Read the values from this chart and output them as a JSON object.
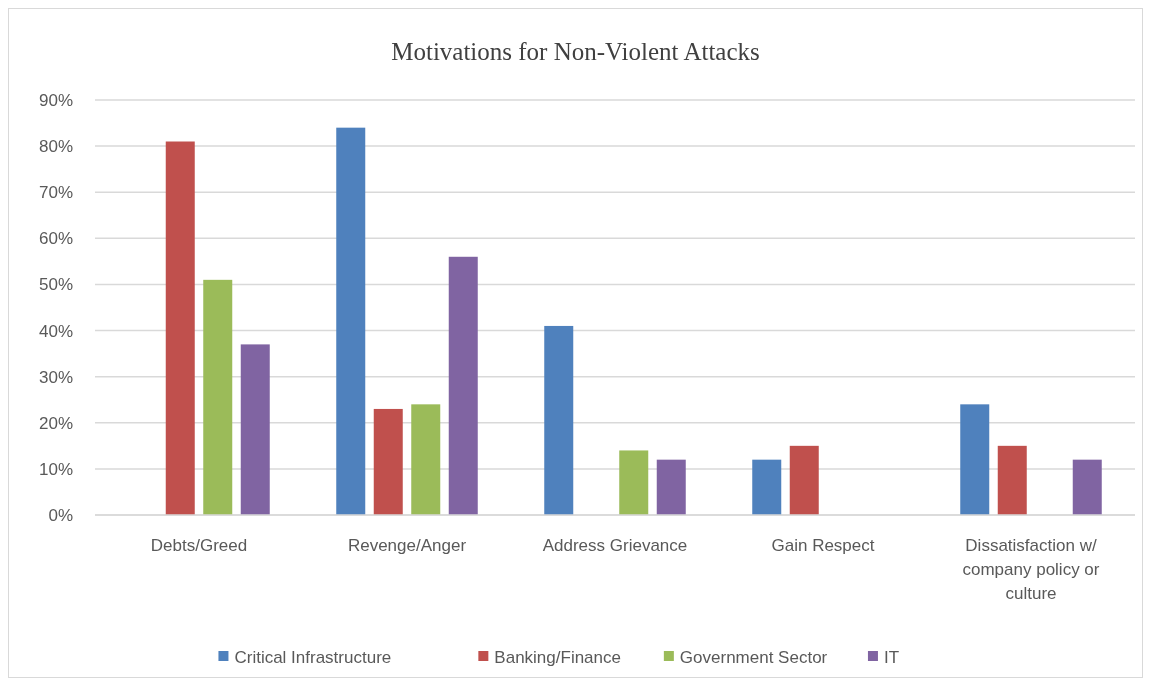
{
  "chart_data": {
    "type": "bar",
    "title": "Motivations for Non-Violent Attacks",
    "categories": [
      "Debts/Greed",
      "Revenge/Anger",
      "Address Grievance",
      "Gain Respect",
      "Dissatisfaction w/ company policy or culture"
    ],
    "series": [
      {
        "name": "Critical Infrastructure",
        "color": "#4f81bd",
        "values": [
          0,
          84,
          41,
          12,
          24
        ]
      },
      {
        "name": "Banking/Finance",
        "color": "#c0504d",
        "values": [
          81,
          23,
          0,
          15,
          15
        ]
      },
      {
        "name": "Government Sector",
        "color": "#9bbb59",
        "values": [
          51,
          24,
          14,
          0,
          0
        ]
      },
      {
        "name": "IT",
        "color": "#8064a2",
        "values": [
          37,
          56,
          12,
          0,
          12
        ]
      }
    ],
    "ylim": [
      0,
      90
    ],
    "yticks": [
      {
        "value": 0,
        "label": "0%"
      },
      {
        "value": 10,
        "label": "10%"
      },
      {
        "value": 20,
        "label": "20%"
      },
      {
        "value": 30,
        "label": "30%"
      },
      {
        "value": 40,
        "label": "40%"
      },
      {
        "value": 50,
        "label": "50%"
      },
      {
        "value": 60,
        "label": "60%"
      },
      {
        "value": 70,
        "label": "70%"
      },
      {
        "value": 80,
        "label": "80%"
      },
      {
        "value": 90,
        "label": "90%"
      }
    ],
    "grid": "y",
    "legend": "bottom"
  }
}
